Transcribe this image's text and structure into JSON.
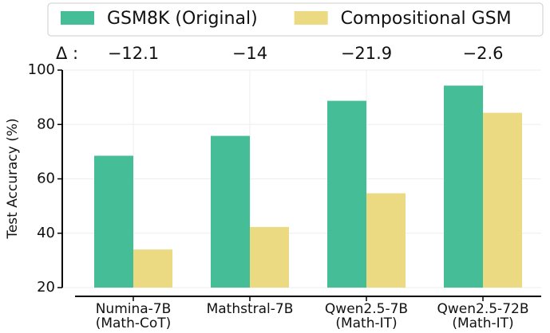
{
  "chart_data": {
    "type": "bar",
    "categories": [
      "Numina-7B\n(Math-CoT)",
      "Mathstral-7B",
      "Qwen2.5-7B\n(Math-IT)",
      "Qwen2.5-72B\n(Math-IT)"
    ],
    "series": [
      {
        "name": "GSM8K (Original)",
        "color": "#45bd97",
        "values": [
          68.5,
          75.8,
          88.7,
          94.3
        ]
      },
      {
        "name": "Compositional GSM",
        "color": "#ecda83",
        "values": [
          34.0,
          42.3,
          54.7,
          84.3
        ]
      }
    ],
    "delta_label": "Δ :",
    "annotations": [
      "−12.1",
      "−14",
      "−21.9",
      "−2.6"
    ],
    "ylabel": "Test Accuracy (%)",
    "ylim": [
      20,
      100
    ],
    "yticks": [
      20,
      40,
      60,
      80,
      100
    ],
    "grid": true,
    "legend": "top"
  }
}
